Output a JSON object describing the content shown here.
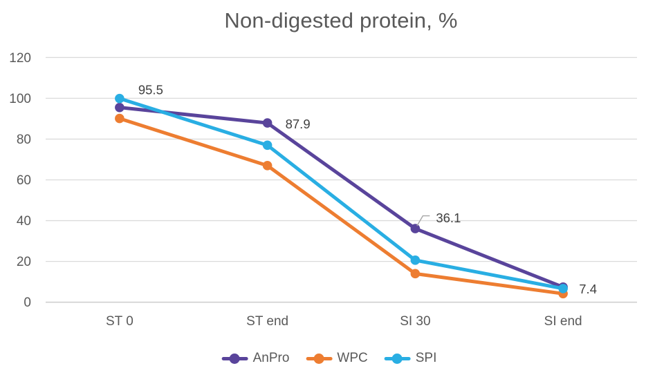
{
  "chart_data": {
    "type": "line",
    "title": "Non-digested protein, %",
    "categories": [
      "ST 0",
      "ST end",
      "SI 30",
      "SI end"
    ],
    "series": [
      {
        "name": "AnPro",
        "color": "#59449B",
        "values": [
          95.5,
          87.9,
          36.1,
          7.4
        ],
        "data_labels": [
          "95.5",
          "87.9",
          "36.1",
          "7.4"
        ]
      },
      {
        "name": "WPC",
        "color": "#ED7D31",
        "values": [
          90.1,
          67.0,
          14.0,
          4.2
        ]
      },
      {
        "name": "SPI",
        "color": "#29AEE3",
        "values": [
          99.9,
          77.0,
          20.6,
          6.7
        ]
      }
    ],
    "ylim": [
      0,
      120
    ],
    "yticks": [
      0,
      20,
      40,
      60,
      80,
      100,
      120
    ],
    "grid": true,
    "legend_position": "bottom",
    "marker": "circle",
    "data_labels_on_series": "AnPro"
  },
  "colors": {
    "title_text": "#595959",
    "axis_text": "#595959",
    "data_label_text": "#404040",
    "gridline": "#DBDBDB",
    "axis_line": "#CFCFCF",
    "leader_line": "#A6A6A6",
    "background": "#FFFFFF"
  }
}
